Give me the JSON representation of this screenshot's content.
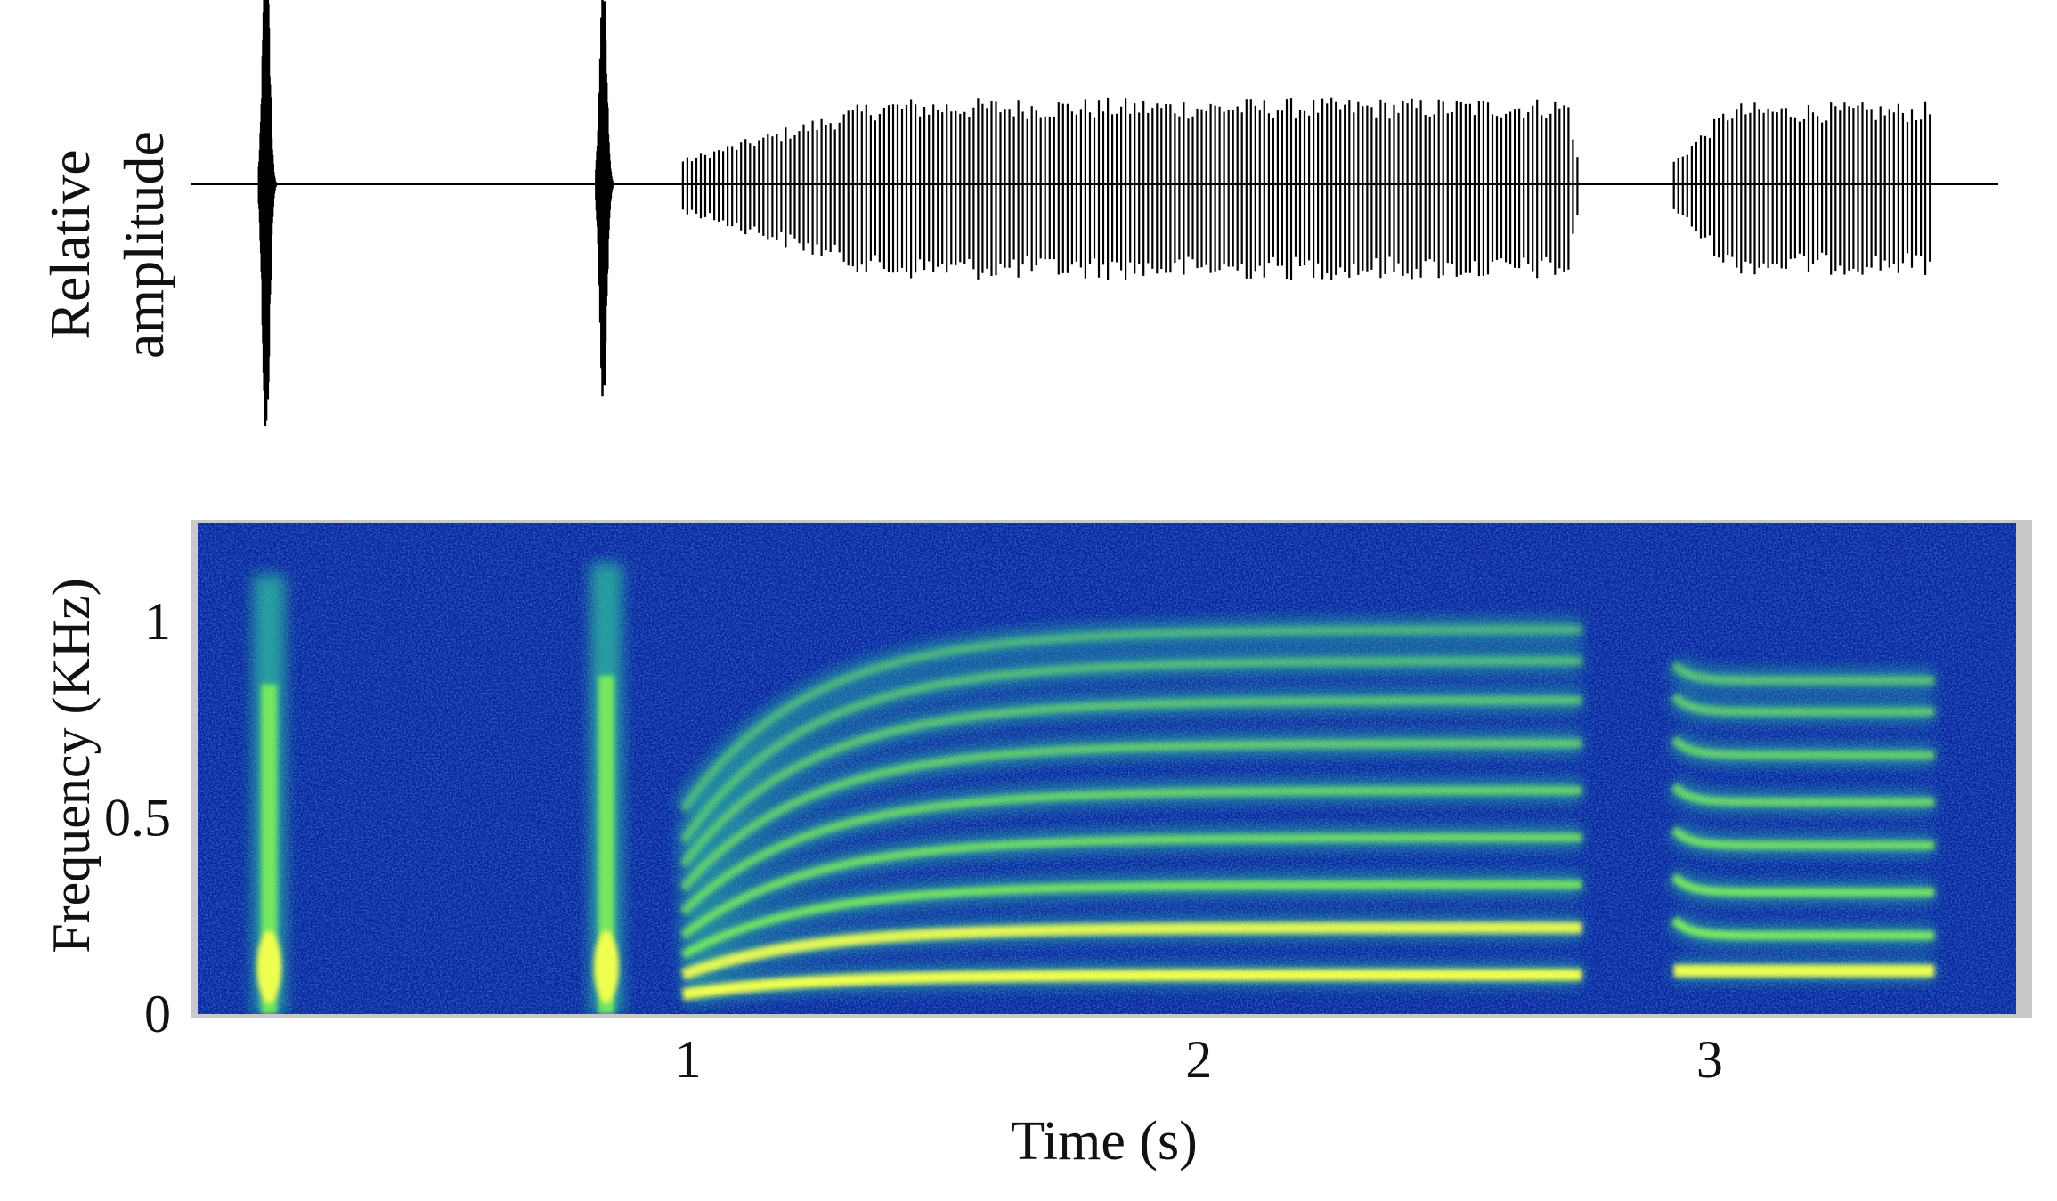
{
  "chart_data": [
    {
      "type": "line",
      "panel": "waveform",
      "ylabel": [
        "Relative",
        "amplitude"
      ],
      "xlim": [
        0.04,
        3.6
      ],
      "color": "#000000",
      "segments": [
        {
          "start": 0.16,
          "end": 0.2,
          "amplitude": 1.0
        },
        {
          "start": 0.82,
          "end": 0.86,
          "amplitude": 0.9
        },
        {
          "start": 0.99,
          "end": 2.75,
          "amplitude": 0.38
        },
        {
          "start": 2.93,
          "end": 3.44,
          "amplitude": 0.36
        }
      ]
    },
    {
      "type": "heatmap",
      "panel": "spectrogram",
      "xlabel": "Time (s)",
      "ylabel": "Frequency (KHz)",
      "xlim": [
        0.04,
        3.6
      ],
      "ylim": [
        0,
        1.25
      ],
      "xticks": [
        1,
        2,
        3
      ],
      "xtick_labels": [
        "1",
        "2",
        "3"
      ],
      "yticks": [
        0,
        0.5,
        1
      ],
      "ytick_labels": [
        "0",
        "0.5",
        "1"
      ],
      "colormap": [
        "#0a1a8a",
        "#1565c0",
        "#2aa8a0",
        "#7ff05a",
        "#f0ff50"
      ],
      "background_color": "#0b1f9a",
      "transients": [
        {
          "time": 0.18,
          "freq_low": 0.0,
          "freq_high": 1.12
        },
        {
          "time": 0.84,
          "freq_low": 0.0,
          "freq_high": 1.15
        }
      ],
      "harmonics_call_1": {
        "time_start": 0.99,
        "time_end": 2.75,
        "onset_freqs": [
          0.05,
          0.1,
          0.15,
          0.2,
          0.26,
          0.32,
          0.38,
          0.44,
          0.52
        ],
        "steady_freqs": [
          0.1,
          0.22,
          0.33,
          0.45,
          0.57,
          0.69,
          0.8,
          0.9,
          0.98
        ]
      },
      "harmonics_call_2": {
        "time_start": 2.93,
        "time_end": 3.44,
        "freqs": [
          0.11,
          0.2,
          0.31,
          0.43,
          0.54,
          0.66,
          0.77,
          0.85
        ]
      }
    }
  ]
}
